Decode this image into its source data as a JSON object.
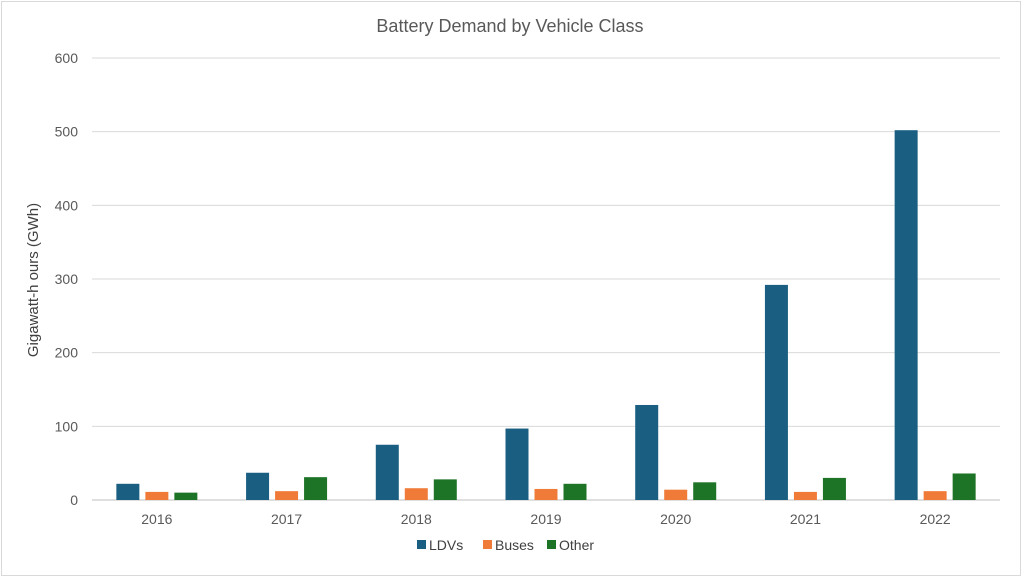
{
  "chart_data": {
    "type": "bar",
    "title": "Battery Demand by Vehicle Class",
    "xlabel": "",
    "ylabel": "Gigawatt-h ours (GWh)",
    "categories": [
      "2016",
      "2017",
      "2018",
      "2019",
      "2020",
      "2021",
      "2022"
    ],
    "series": [
      {
        "name": "LDVs",
        "color": "#1a5e82",
        "values": [
          22,
          37,
          75,
          97,
          129,
          292,
          502
        ]
      },
      {
        "name": "Buses",
        "color": "#f07b38",
        "values": [
          11,
          12,
          16,
          15,
          14,
          11,
          12
        ]
      },
      {
        "name": "Other",
        "color": "#1d7326",
        "values": [
          10,
          31,
          28,
          22,
          24,
          30,
          36
        ]
      }
    ],
    "ylim": [
      0,
      600
    ],
    "yticks": [
      "0",
      "100",
      "200",
      "300",
      "400",
      "500",
      "600"
    ],
    "grid": true,
    "legend_position": "bottom"
  }
}
